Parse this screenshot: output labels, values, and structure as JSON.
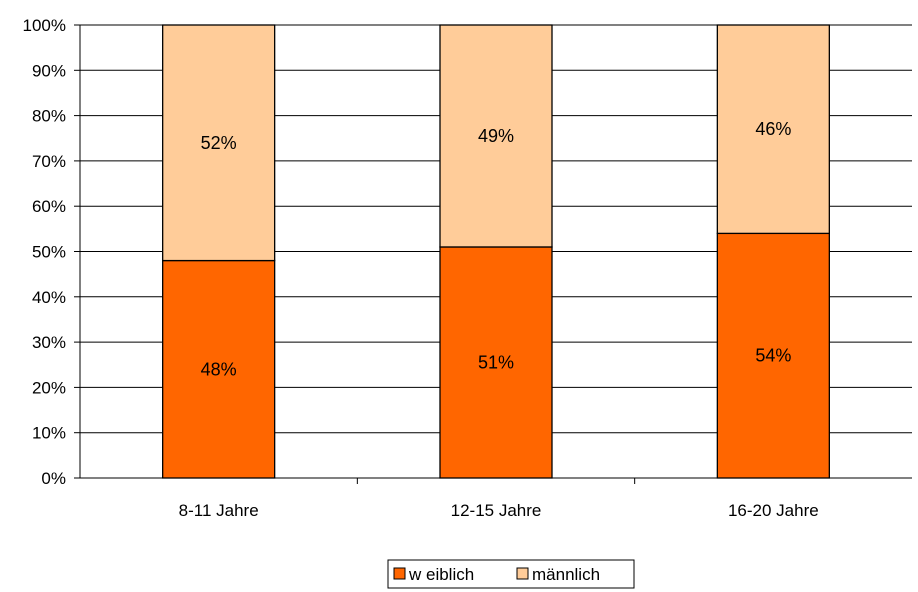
{
  "chart_data": {
    "type": "bar",
    "stacked": true,
    "categories": [
      "8-11 Jahre",
      "12-15 Jahre",
      "16-20 Jahre"
    ],
    "series": [
      {
        "name": "w eiblich",
        "values": [
          48,
          51,
          54
        ],
        "labels": [
          "48%",
          "51%",
          "54%"
        ],
        "color": "#FF6600"
      },
      {
        "name": "männlich",
        "values": [
          52,
          49,
          46
        ],
        "labels": [
          "52%",
          "49%",
          "46%"
        ],
        "color": "#FFCC99"
      }
    ],
    "ylim": [
      0,
      100
    ],
    "yticks": [
      "0%",
      "10%",
      "20%",
      "30%",
      "40%",
      "50%",
      "60%",
      "70%",
      "80%",
      "90%",
      "100%"
    ],
    "grid": true,
    "legend_position": "bottom"
  }
}
